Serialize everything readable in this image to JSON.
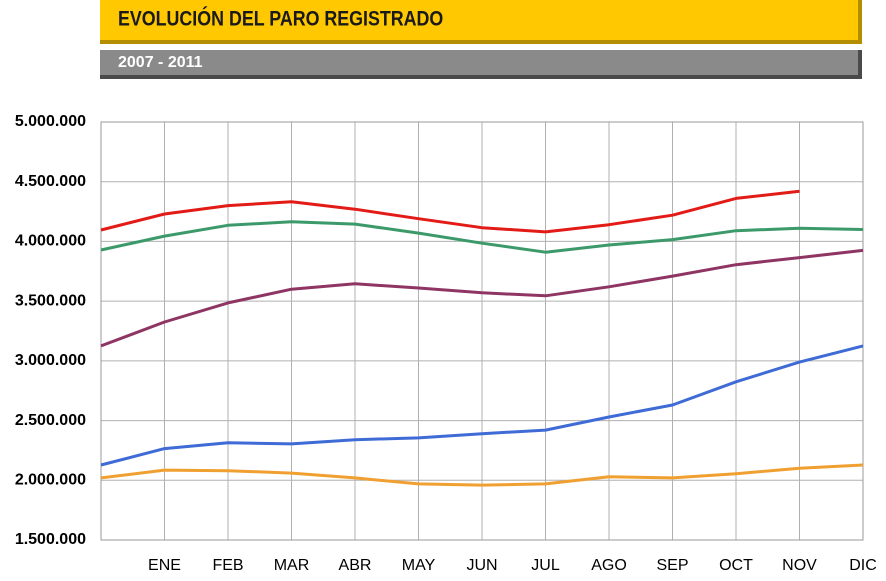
{
  "chart_data": {
    "type": "line",
    "title": "EVOLUCIÓN DEL PARO REGISTRADO",
    "subtitle": "2007 - 2011",
    "categories": [
      null,
      "ENE",
      "FEB",
      "MAR",
      "ABR",
      "MAY",
      "JUN",
      "JUL",
      "AGO",
      "SEP",
      "OCT",
      "NOV",
      "DIC"
    ],
    "series": [
      {
        "color": "#e31b17",
        "values": [
          4096000,
          4230000,
          4300000,
          4333000,
          4270000,
          4190000,
          4115000,
          4080000,
          4140000,
          4220000,
          4360000,
          4420000,
          null
        ]
      },
      {
        "color": "#3c9a6a",
        "values": [
          3928000,
          4045000,
          4135000,
          4165000,
          4145000,
          4070000,
          3985000,
          3910000,
          3970000,
          4015000,
          4090000,
          4110000,
          4100000
        ]
      },
      {
        "color": "#8e3563",
        "values": [
          3125000,
          3325000,
          3485000,
          3600000,
          3645000,
          3610000,
          3570000,
          3545000,
          3620000,
          3710000,
          3805000,
          3865000,
          3925000
        ]
      },
      {
        "color": "#3f6bd6",
        "values": [
          2128000,
          2265000,
          2315000,
          2305000,
          2340000,
          2355000,
          2390000,
          2420000,
          2530000,
          2630000,
          2825000,
          2990000,
          3125000
        ]
      },
      {
        "color": "#f0a030",
        "values": [
          2020000,
          2085000,
          2080000,
          2060000,
          2020000,
          1970000,
          1960000,
          1970000,
          2030000,
          2020000,
          2055000,
          2100000,
          2128000
        ]
      }
    ],
    "ylim": [
      1500000,
      5000000
    ],
    "yticks": [
      {
        "value": 1500000,
        "label": "1.500.000"
      },
      {
        "value": 2000000,
        "label": "2.000.000"
      },
      {
        "value": 2500000,
        "label": "2.500.000"
      },
      {
        "value": 3000000,
        "label": "3.000.000"
      },
      {
        "value": 3500000,
        "label": "3.500.000"
      },
      {
        "value": 4000000,
        "label": "4.000.000"
      },
      {
        "value": 4500000,
        "label": "4.500.000"
      },
      {
        "value": 5000000,
        "label": "5.000.000"
      }
    ],
    "grid": true
  }
}
